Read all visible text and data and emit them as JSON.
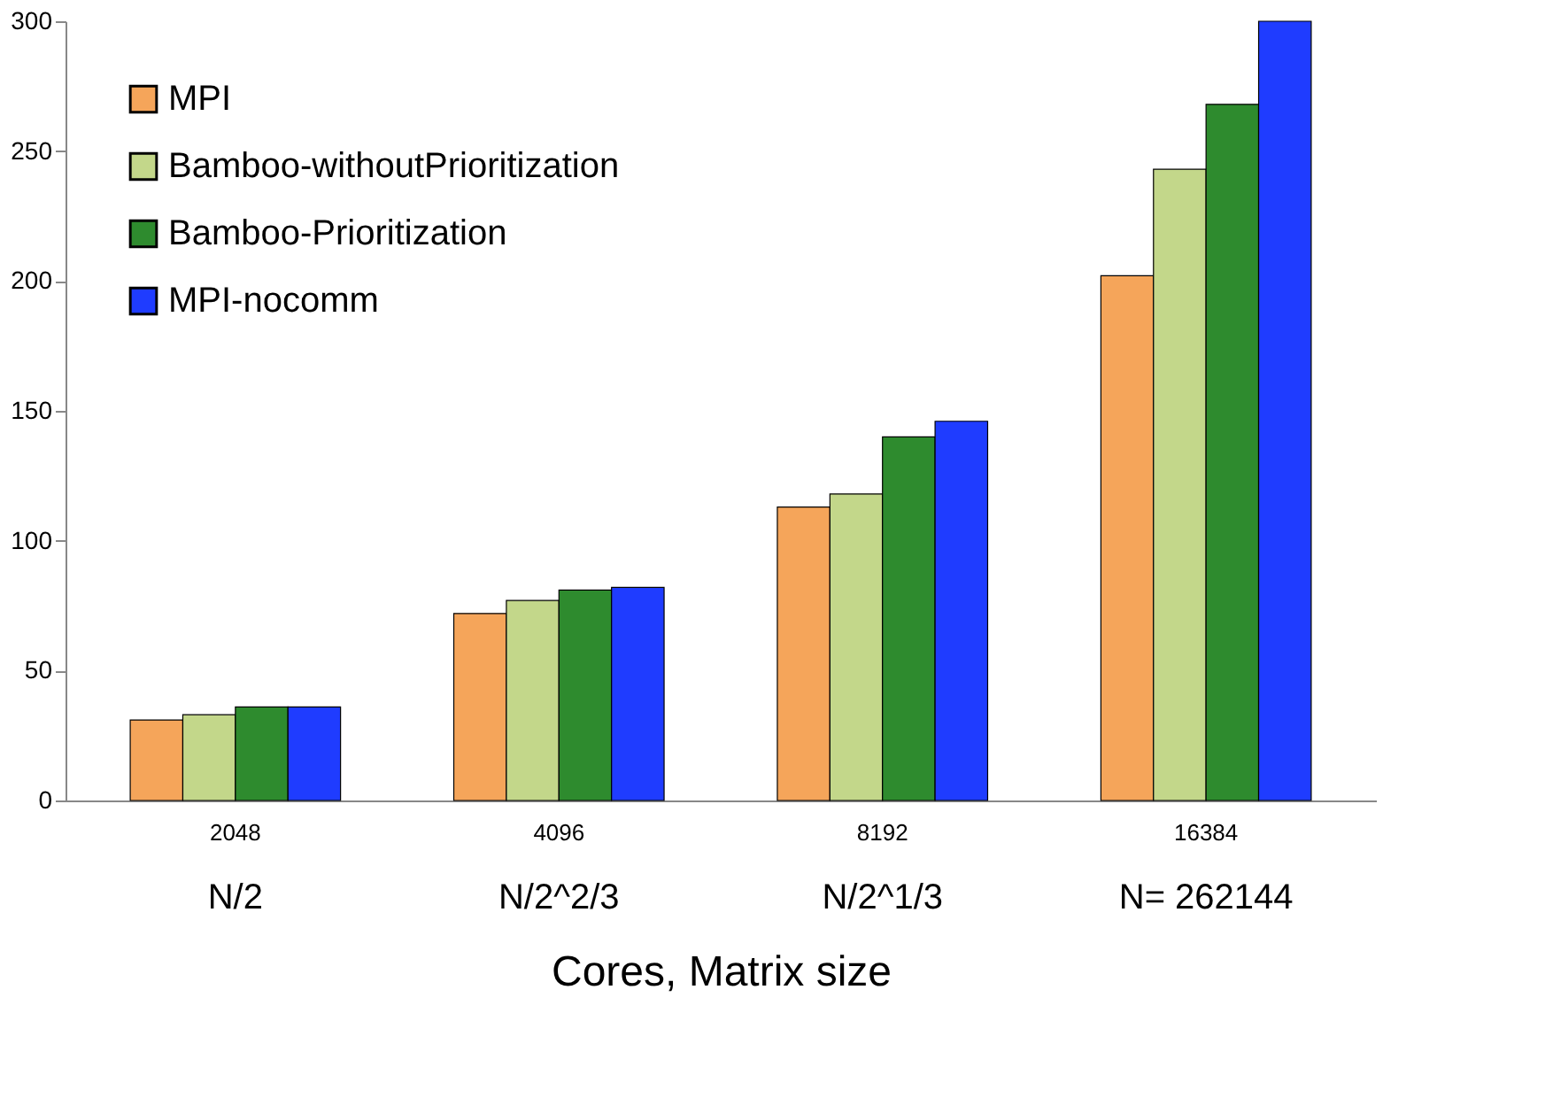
{
  "chart_data": {
    "type": "bar",
    "categories": [
      "2048",
      "4096",
      "8192",
      "16384"
    ],
    "xlabel": "Cores, Matrix size",
    "series": [
      {
        "name": "MPI",
        "color": "#f5a55a",
        "values": [
          31,
          72,
          113,
          202
        ]
      },
      {
        "name": "Bamboo-withoutPrioritization",
        "color": "#c3d78a",
        "values": [
          33,
          77,
          118,
          243
        ]
      },
      {
        "name": "Bamboo-Prioritization",
        "color": "#2e8b2e",
        "values": [
          36,
          81,
          140,
          268
        ]
      },
      {
        "name": "MPI-nocomm",
        "color": "#1f3cff",
        "values": [
          36,
          82,
          146,
          300
        ]
      }
    ],
    "annotations": [
      "N/2",
      "N/2^2/3",
      "N/2^1/3",
      "N= 262144"
    ],
    "ylim": [
      0,
      300
    ],
    "yticks": [
      0,
      50,
      100,
      150,
      200,
      250,
      300
    ],
    "grid": false,
    "legend": "top left"
  }
}
